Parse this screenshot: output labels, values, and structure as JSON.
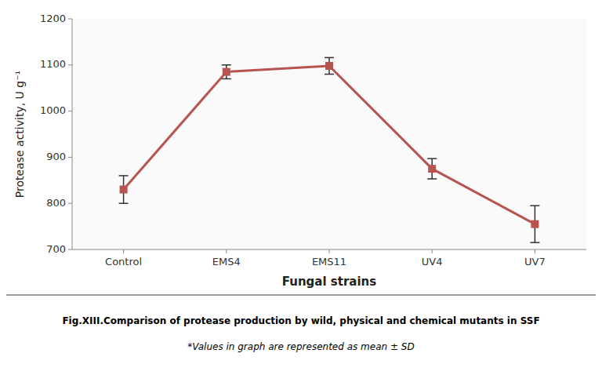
{
  "chart_data": {
    "type": "line",
    "title": "Fig.XIII.Comparison of protease production by wild, physical and chemical mutants in SSF",
    "subtitle": "*Values in graph are represented as mean ± SD",
    "categories": [
      "Control",
      "EMS4",
      "EMS11",
      "UV4",
      "UV7"
    ],
    "values": [
      830,
      1085,
      1098,
      875,
      755
    ],
    "errors": [
      30,
      15,
      18,
      22,
      40
    ],
    "color": "#b85450",
    "marker": "square",
    "xlabel": "Fungal strains",
    "ylabel": "Protease activity, U g⁻¹",
    "ylim": [
      700,
      1200
    ],
    "yticks": [
      700,
      800,
      900,
      1000,
      1100,
      1200
    ],
    "grid": false
  }
}
